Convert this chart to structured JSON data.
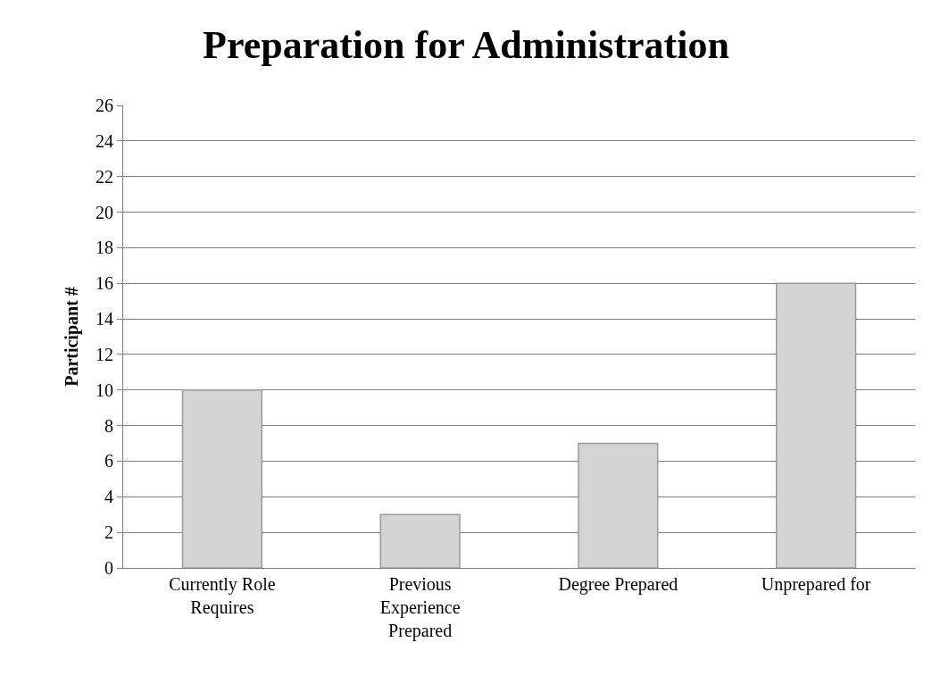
{
  "chart_data": {
    "type": "bar",
    "title": "Preparation for Administration",
    "ylabel": "Participant #",
    "categories": [
      "Currently Role Requires",
      "Previous Experience Prepared",
      "Degree Prepared",
      "Unprepared for"
    ],
    "values": [
      10,
      3,
      7,
      16
    ],
    "color": "#d4d4d4",
    "ylim": [
      0,
      26
    ],
    "yticks": [
      0,
      2,
      4,
      6,
      8,
      10,
      12,
      14,
      16,
      18,
      20,
      22,
      24,
      26
    ],
    "grid": "y"
  }
}
